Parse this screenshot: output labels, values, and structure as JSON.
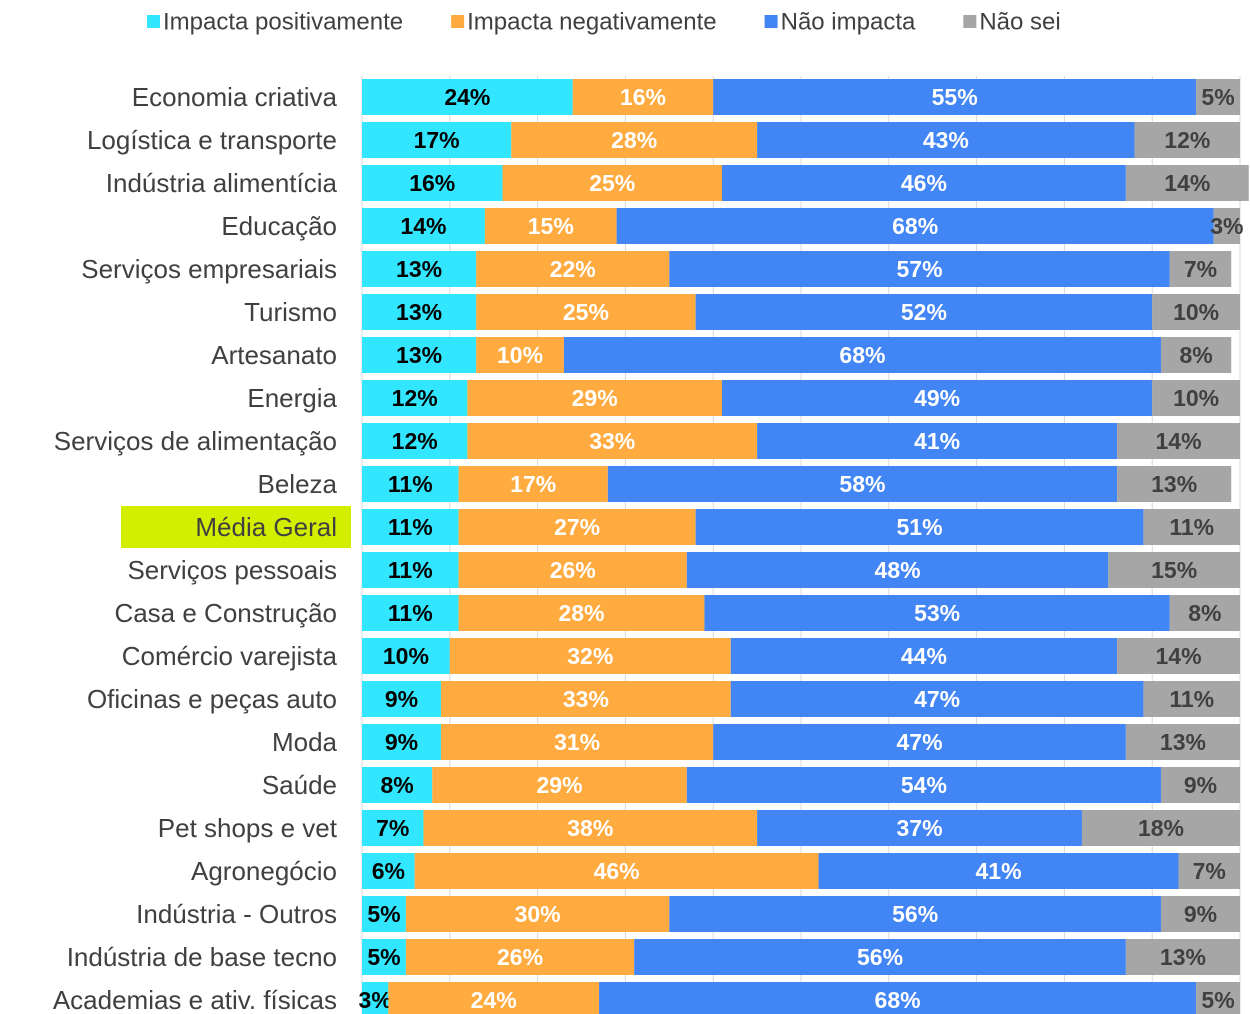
{
  "chart_data": {
    "type": "stacked-bar-horizontal",
    "categories": [
      "Economia criativa",
      "Logística e transporte",
      "Indústria alimentícia",
      "Educação",
      "Serviços empresariais",
      "Turismo",
      "Artesanato",
      "Energia",
      "Serviços de alimentação",
      "Beleza",
      "Média Geral",
      "Serviços pessoais",
      "Casa e Construção",
      "Comércio varejista",
      "Oficinas e peças auto",
      "Moda",
      "Saúde",
      "Pet shops e vet",
      "Agronegócio",
      "Indústria - Outros",
      "Indústria de base tecno",
      "Academias e ativ. físicas"
    ],
    "highlight_category": "Média Geral",
    "highlight_color": "#d4ee00",
    "series": [
      {
        "name": "Impacta positivamente",
        "color": "#33e6ff",
        "label_color": "#000000",
        "values": [
          24,
          17,
          16,
          14,
          13,
          13,
          13,
          12,
          12,
          11,
          11,
          11,
          11,
          10,
          9,
          9,
          8,
          7,
          6,
          5,
          5,
          3
        ],
        "value_labels": [
          "24%",
          "17%",
          "16%",
          "14%",
          "13%",
          "13%",
          "13%",
          "12%",
          "12%",
          "11%",
          "11%",
          "11%",
          "11%",
          "10%",
          "9%",
          "9%",
          "8%",
          "7%",
          "6%",
          "5%",
          "5%",
          "3%"
        ]
      },
      {
        "name": "Impacta negativamente",
        "color": "#ffab40",
        "label_color": "#ffffff",
        "values": [
          16,
          28,
          25,
          15,
          22,
          25,
          10,
          29,
          33,
          17,
          27,
          26,
          28,
          32,
          33,
          31,
          29,
          38,
          46,
          30,
          26,
          24
        ],
        "value_labels": [
          "16%",
          "28%",
          "25%",
          "15%",
          "22%",
          "25%",
          "10%",
          "29%",
          "33%",
          "17%",
          "27%",
          "26%",
          "28%",
          "32%",
          "33%",
          "31%",
          "29%",
          "38%",
          "46%",
          "30%",
          "26%",
          "24%"
        ]
      },
      {
        "name": "Não impacta",
        "color": "#4285f4",
        "label_color": "#ffffff",
        "values": [
          55,
          43,
          46,
          68,
          57,
          52,
          68,
          49,
          41,
          58,
          51,
          48,
          53,
          44,
          47,
          47,
          54,
          37,
          41,
          56,
          56,
          68
        ],
        "value_labels": [
          "55%",
          "43%",
          "46%",
          "68%",
          "57%",
          "52%",
          "68%",
          "49%",
          "41%",
          "58%",
          "51%",
          "48%",
          "53%",
          "44%",
          "47%",
          "47%",
          "54%",
          "37%",
          "41%",
          "56%",
          "56%",
          "68%"
        ]
      },
      {
        "name": "Não sei",
        "color": "#a6a6a6",
        "label_color": "#404040",
        "values": [
          5,
          12,
          14,
          3,
          7,
          10,
          8,
          10,
          14,
          13,
          11,
          15,
          8,
          14,
          11,
          13,
          9,
          18,
          7,
          9,
          13,
          5
        ],
        "value_labels": [
          "5%",
          "12%",
          "14%",
          "3%",
          "7%",
          "10%",
          "8%",
          "10%",
          "14%",
          "13%",
          "11%",
          "15%",
          "8%",
          "14%",
          "11%",
          "13%",
          "9%",
          "18%",
          "7%",
          "9%",
          "13%",
          "5%"
        ]
      }
    ],
    "xlim": [
      0,
      100
    ],
    "xticks": [
      0,
      10,
      20,
      30,
      40,
      50,
      60,
      70,
      80,
      90,
      100
    ],
    "grid": true,
    "legend": "top"
  }
}
